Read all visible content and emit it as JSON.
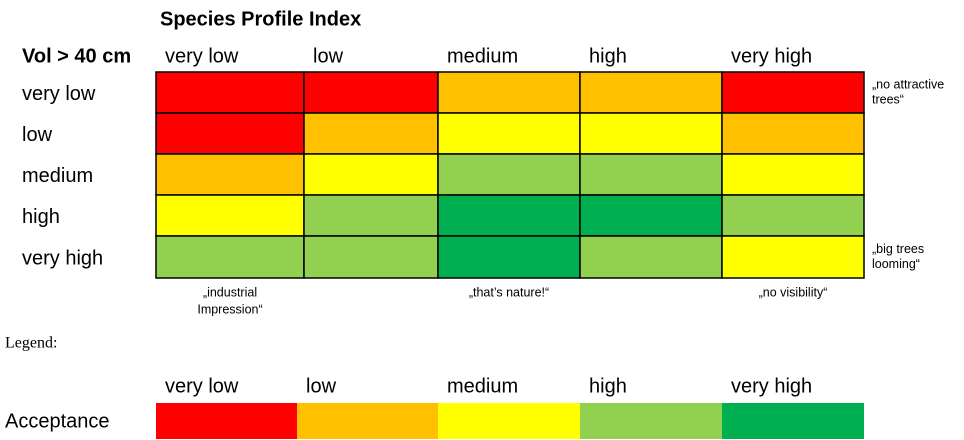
{
  "title": "Species Profile Index",
  "row_header": "Vol > 40 cm",
  "columns": [
    "very low",
    "low",
    "medium",
    "high",
    "very high"
  ],
  "rows": [
    "very low",
    "low",
    "medium",
    "high",
    "very high"
  ],
  "cells": [
    [
      "#ff0000",
      "#ff0000",
      "#ffc000",
      "#ffc000",
      "#ff0000"
    ],
    [
      "#ff0000",
      "#ffc000",
      "#ffff00",
      "#ffff00",
      "#ffc000"
    ],
    [
      "#ffc000",
      "#ffff00",
      "#92d050",
      "#92d050",
      "#ffff00"
    ],
    [
      "#ffff00",
      "#92d050",
      "#00b050",
      "#00b050",
      "#92d050"
    ],
    [
      "#92d050",
      "#92d050",
      "#00b050",
      "#92d050",
      "#ffff00"
    ]
  ],
  "side_notes": [
    {
      "row": 0,
      "lines": [
        "„no attractive",
        "trees“"
      ]
    },
    {
      "row": 4,
      "lines": [
        "„big trees",
        "looming“"
      ]
    }
  ],
  "bottom_notes": [
    {
      "column": 0,
      "lines": [
        "„industrial",
        "Impression“"
      ]
    },
    {
      "column": 2,
      "lines": [
        "„that’s nature!“"
      ]
    },
    {
      "column": 4,
      "lines": [
        "„no visibility“"
      ]
    }
  ],
  "legend": {
    "heading": "Legend:",
    "label": "Acceptance",
    "levels": [
      {
        "name": "very low",
        "color": "#ff0000"
      },
      {
        "name": "low",
        "color": "#ffc000"
      },
      {
        "name": "medium",
        "color": "#ffff00"
      },
      {
        "name": "high",
        "color": "#92d050"
      },
      {
        "name": "very high",
        "color": "#00b050"
      }
    ]
  }
}
